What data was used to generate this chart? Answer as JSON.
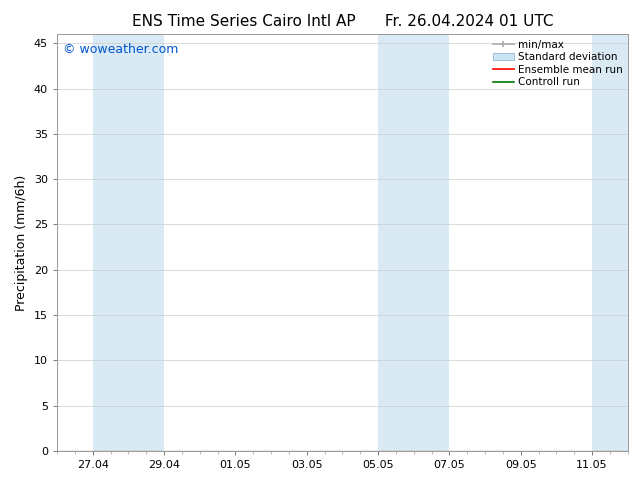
{
  "title_left": "ENS Time Series Cairo Intl AP",
  "title_right": "Fr. 26.04.2024 01 UTC",
  "ylabel": "Precipitation (mm/6h)",
  "watermark": "© woweather.com",
  "watermark_color": "#0055cc",
  "background_color": "#ffffff",
  "plot_bg_color": "#ffffff",
  "ylim": [
    0,
    46
  ],
  "yticks": [
    0,
    5,
    10,
    15,
    20,
    25,
    30,
    35,
    40,
    45
  ],
  "legend_items": [
    {
      "label": "min/max",
      "color": "#aaaaaa",
      "style": "errorbar"
    },
    {
      "label": "Standard deviation",
      "color": "#cce5f5",
      "style": "box"
    },
    {
      "label": "Ensemble mean run",
      "color": "#ff0000",
      "style": "line"
    },
    {
      "label": "Controll run",
      "color": "#007700",
      "style": "line"
    }
  ],
  "title_fontsize": 11,
  "label_fontsize": 9,
  "tick_fontsize": 8,
  "watermark_fontsize": 9,
  "legend_fontsize": 7.5,
  "grid_color": "#cccccc",
  "band_color": "#daeaf5",
  "start_date": "2024-04-26",
  "num_days": 16,
  "xtick_labels": [
    "27.04",
    "29.04",
    "01.05",
    "03.05",
    "05.05",
    "07.05",
    "09.05",
    "11.05"
  ],
  "shaded_day_starts": [
    1,
    3,
    9,
    11,
    15
  ]
}
